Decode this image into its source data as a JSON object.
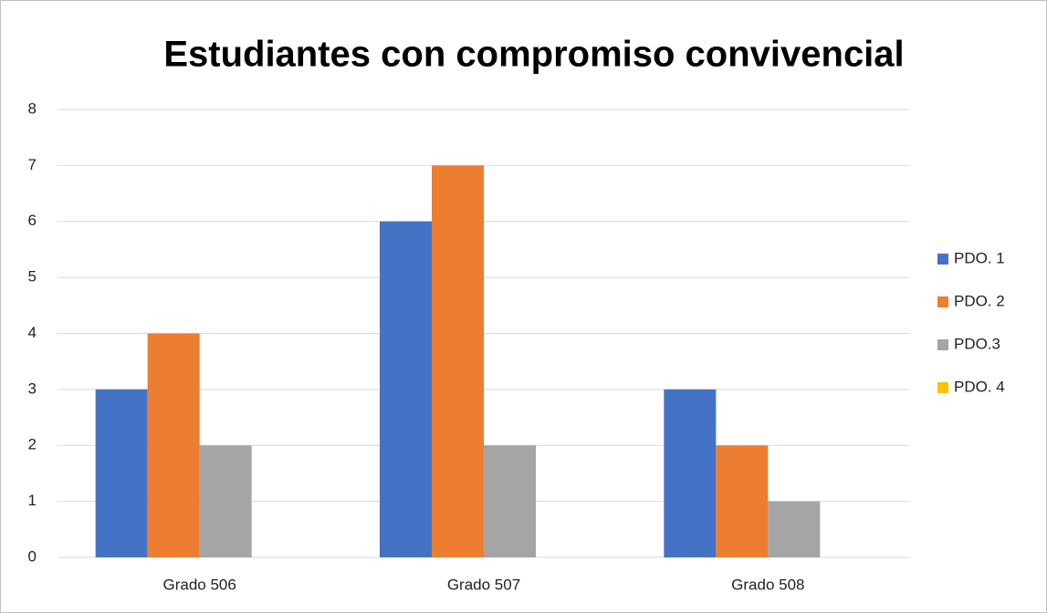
{
  "chart_data": {
    "type": "bar",
    "title": "Estudiantes con compromiso convivencial",
    "categories": [
      "Grado 506",
      "Grado 507",
      "Grado 508"
    ],
    "series": [
      {
        "name": "PDO. 1",
        "color": "#4472c4",
        "values": [
          3,
          6,
          3
        ]
      },
      {
        "name": "PDO. 2",
        "color": "#ed7d31",
        "values": [
          4,
          7,
          2
        ]
      },
      {
        "name": "PDO.3",
        "color": "#a5a5a5",
        "values": [
          2,
          2,
          1
        ]
      },
      {
        "name": "PDO. 4",
        "color": "#ffc000",
        "values": [
          0,
          0,
          0
        ]
      }
    ],
    "ylim": [
      0,
      8
    ],
    "yticks": [
      0,
      1,
      2,
      3,
      4,
      5,
      6,
      7,
      8
    ],
    "grid": true,
    "legend": "right"
  }
}
